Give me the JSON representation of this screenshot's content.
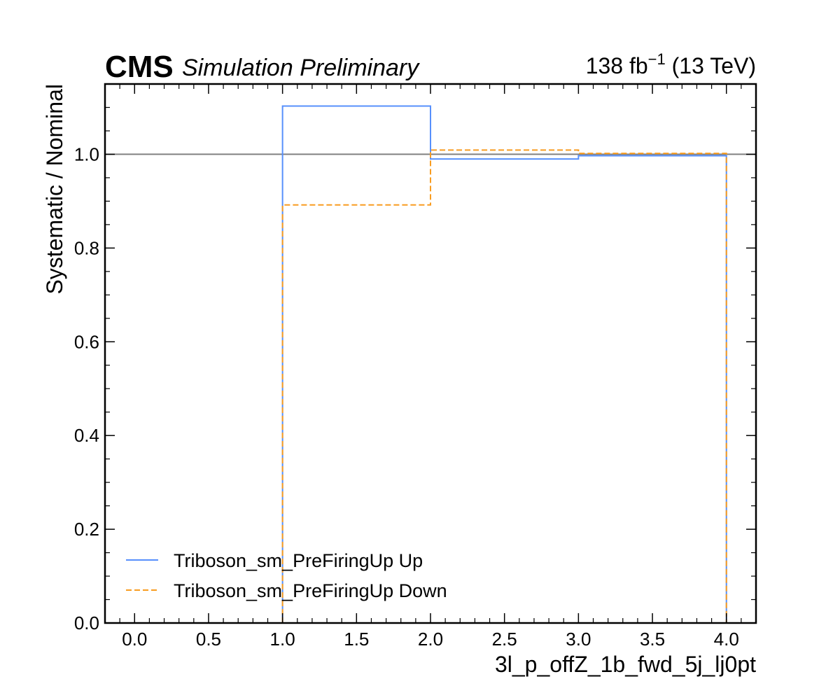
{
  "header": {
    "experiment": "CMS",
    "status": "Simulation Preliminary",
    "lumi_value": "138 fb",
    "lumi_exp": "−1",
    "energy": "(13 TeV)"
  },
  "chart_data": {
    "type": "line",
    "style": "step-histogram",
    "xlabel": "3l_p_offZ_1b_fwd_5j_lj0pt",
    "ylabel": "Systematic / Nominal",
    "xlim": [
      -0.2,
      4.2
    ],
    "ylim": [
      0.0,
      1.15
    ],
    "xticks": [
      0.0,
      0.5,
      1.0,
      1.5,
      2.0,
      2.5,
      3.0,
      3.5,
      4.0
    ],
    "xtick_labels": [
      "0.0",
      "0.5",
      "1.0",
      "1.5",
      "2.0",
      "2.5",
      "3.0",
      "3.5",
      "4.0"
    ],
    "yticks": [
      0.0,
      0.2,
      0.4,
      0.6,
      0.8,
      1.0
    ],
    "ytick_labels": [
      "0.0",
      "0.2",
      "0.4",
      "0.6",
      "0.8",
      "1.0"
    ],
    "reference_line": 1.0,
    "bin_edges": [
      1.0,
      2.0,
      3.0,
      4.0
    ],
    "series": [
      {
        "name": "Triboson_sm_PreFiringUp Up",
        "values": [
          1.103,
          0.99,
          0.997
        ],
        "color": "#5790fc",
        "dash": "solid"
      },
      {
        "name": "Triboson_sm_PreFiringUp Down",
        "values": [
          0.892,
          1.009,
          1.002
        ],
        "color": "#f89c20",
        "dash": "dashed"
      }
    ],
    "reference_color": "#808080",
    "legend_position": "lower-left",
    "grid": false
  }
}
